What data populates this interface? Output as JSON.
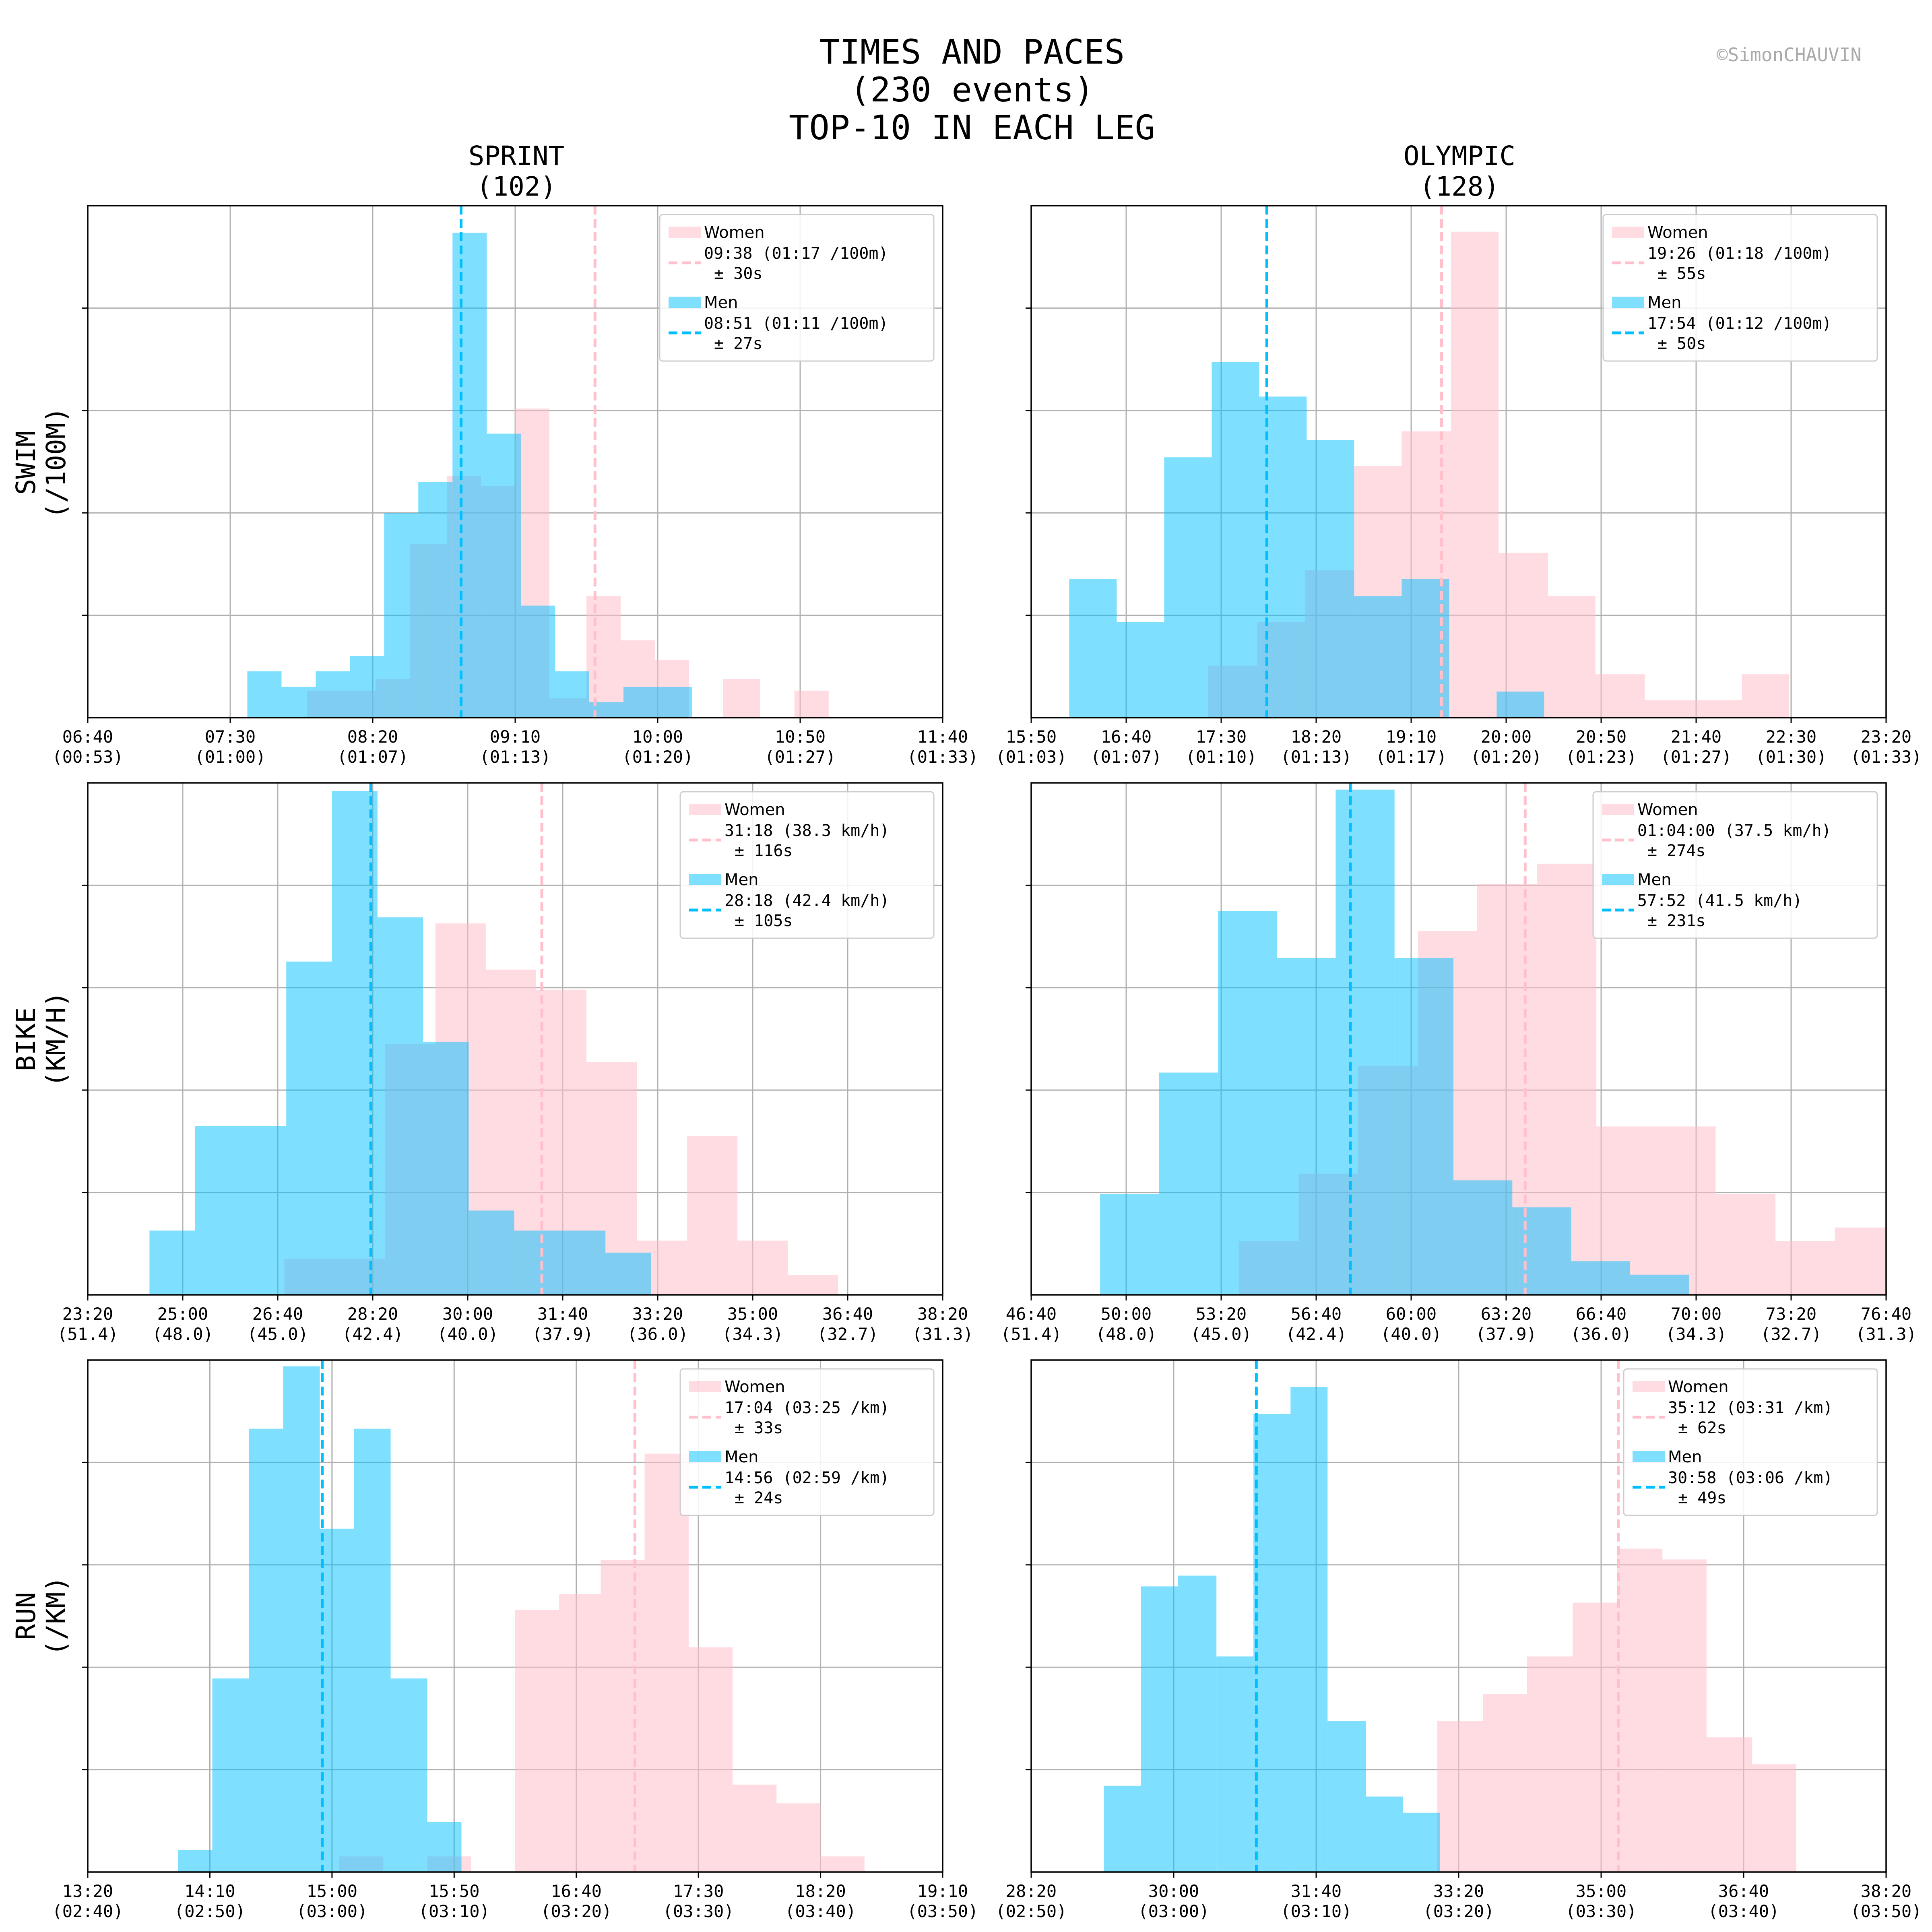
{
  "title_lines": [
    "TIMES AND PACES",
    "(230 events)",
    "TOP-10 IN EACH LEG"
  ],
  "watermark": "©SimonCHAUVIN",
  "columns": [
    {
      "name": "SPRINT",
      "count": "(102)"
    },
    {
      "name": "OLYMPIC",
      "count": "(128)"
    }
  ],
  "rows": [
    {
      "name": "SWIM",
      "unit": "(/100M)"
    },
    {
      "name": "BIKE",
      "unit": "(KM/H)"
    },
    {
      "name": "RUN",
      "unit": "(/KM)"
    }
  ],
  "colors": {
    "women": "#ffc0cb",
    "men": "#00bfff",
    "grid": "#b0b0b0"
  },
  "chart_data": [
    {
      "type": "histogram",
      "id": "swim-sprint",
      "row": 0,
      "col": 0,
      "x_unit": "seconds",
      "xlim": [
        400,
        700
      ],
      "ylim": [
        0,
        26.5
      ],
      "xticks": [
        400,
        450,
        500,
        550,
        600,
        650,
        700
      ],
      "xtick_labels": [
        "06:40\n(00:53)",
        "07:30\n(01:00)",
        "08:20\n(01:07)",
        "09:10\n(01:13)",
        "10:00\n(01:20)",
        "10:50\n(01:27)",
        "11:40\n(01:33)"
      ],
      "grid": true,
      "legend": {
        "position": "top-right",
        "women_label": "Women",
        "women_mean": "09:38 (01:17 /100m)",
        "women_sd": "± 30s",
        "men_label": "Men",
        "men_mean": "08:51 (01:11 /100m)",
        "men_sd": "± 27s"
      },
      "women": {
        "bins": [
          477,
          489,
          501,
          513,
          526,
          538,
          550,
          562,
          575,
          587,
          599,
          611,
          623,
          636,
          648,
          660,
          672
        ],
        "counts": [
          1.4,
          1.4,
          2,
          9,
          12.5,
          12,
          16,
          1,
          6.3,
          4,
          3,
          0,
          2,
          0,
          1.4,
          0
        ],
        "mean": 578
      },
      "men": {
        "bins": [
          456,
          468,
          480,
          492,
          504,
          516,
          528,
          540,
          552,
          564,
          576,
          588,
          600,
          612,
          624
        ],
        "counts": [
          2.4,
          1.6,
          2.4,
          3.2,
          10.6,
          12.2,
          25.1,
          14.7,
          5.8,
          2.4,
          0.8,
          1.6,
          1.6,
          0
        ],
        "mean": 531
      }
    },
    {
      "type": "histogram",
      "id": "swim-olympic",
      "row": 0,
      "col": 1,
      "x_unit": "seconds",
      "xlim": [
        950,
        1400
      ],
      "ylim": [
        0,
        5.9
      ],
      "xticks": [
        950,
        1000,
        1050,
        1100,
        1150,
        1200,
        1250,
        1300,
        1350,
        1400
      ],
      "xtick_labels": [
        "15:50\n(01:03)",
        "16:40\n(01:07)",
        "17:30\n(01:10)",
        "18:20\n(01:13)",
        "19:10\n(01:17)",
        "20:00\n(01:20)",
        "20:50\n(01:23)",
        "21:40\n(01:27)",
        "22:30\n(01:30)",
        "23:20\n(01:33)"
      ],
      "grid": true,
      "legend": {
        "position": "top-right",
        "women_label": "Women",
        "women_mean": "19:26 (01:18 /100m)",
        "women_sd": "± 55s",
        "men_label": "Men",
        "men_mean": "17:54 (01:12 /100m)",
        "men_sd": "± 50s"
      },
      "women": {
        "bins": [
          1043,
          1069,
          1094,
          1120,
          1145,
          1171,
          1196,
          1222,
          1247,
          1273,
          1298,
          1324,
          1349,
          1375
        ],
        "counts": [
          0.6,
          1.1,
          1.7,
          2.9,
          3.3,
          5.6,
          1.9,
          1.4,
          0.5,
          0.2,
          0.2,
          0.5,
          0
        ],
        "mean": 1166
      },
      "men": {
        "bins": [
          970,
          995,
          1020,
          1045,
          1070,
          1095,
          1120,
          1145,
          1170,
          1195,
          1220
        ],
        "counts": [
          1.6,
          1.1,
          3.0,
          4.1,
          3.7,
          3.2,
          1.4,
          1.6,
          0,
          0.3
        ],
        "mean": 1074
      }
    },
    {
      "type": "histogram",
      "id": "bike-sprint",
      "row": 1,
      "col": 0,
      "x_unit": "seconds",
      "xlim": [
        1400,
        2300
      ],
      "ylim": [
        0,
        25.5
      ],
      "xticks": [
        1400,
        1500,
        1600,
        1700,
        1800,
        1900,
        2000,
        2100,
        2200,
        2300
      ],
      "xtick_labels": [
        "23:20\n(51.4)",
        "25:00\n(48.0)",
        "26:40\n(45.0)",
        "28:20\n(42.4)",
        "30:00\n(40.0)",
        "31:40\n(37.9)",
        "33:20\n(36.0)",
        "35:00\n(34.3)",
        "36:40\n(32.7)",
        "38:20\n(31.3)"
      ],
      "grid": true,
      "legend": {
        "position": "top-right",
        "women_label": "Women",
        "women_mean": "31:18 (38.3 km/h)",
        "women_sd": "± 116s",
        "men_label": "Men",
        "men_mean": "28:18 (42.4 km/h)",
        "men_sd": "± 105s"
      },
      "women": {
        "bins": [
          1607,
          1660,
          1713,
          1766,
          1819,
          1872,
          1925,
          1978,
          2031,
          2084,
          2137,
          2190,
          2243
        ],
        "counts": [
          1.8,
          1.8,
          12.5,
          18.5,
          16.2,
          15.2,
          11.6,
          2.7,
          7.9,
          2.7,
          1.0,
          0
        ],
        "mean": 1878
      },
      "men": {
        "bins": [
          1465,
          1513,
          1561,
          1609,
          1657,
          1705,
          1753,
          1801,
          1849,
          1897,
          1945,
          1993,
          2041
        ],
        "counts": [
          3.2,
          8.4,
          8.4,
          16.6,
          25.1,
          18.8,
          12.6,
          4.2,
          3.2,
          3.2,
          2.1,
          0
        ],
        "mean": 1698
      }
    },
    {
      "type": "histogram",
      "id": "bike-olympic",
      "row": 1,
      "col": 1,
      "x_unit": "seconds",
      "xlim": [
        2800,
        4600
      ],
      "ylim": [
        0,
        7.6
      ],
      "xticks": [
        2800,
        3000,
        3200,
        3400,
        3600,
        3800,
        4000,
        4200,
        4400,
        4600
      ],
      "xtick_labels": [
        "46:40\n(51.4)",
        "50:00\n(48.0)",
        "53:20\n(45.0)",
        "56:40\n(42.4)",
        "60:00\n(40.0)",
        "63:20\n(37.9)",
        "66:40\n(36.0)",
        "70:00\n(34.3)",
        "73:20\n(32.7)",
        "76:40\n(31.3)"
      ],
      "grid": true,
      "legend": {
        "position": "top-right",
        "women_label": "Women",
        "women_mean": "01:04:00 (37.5 km/h)",
        "women_sd": "± 274s",
        "men_label": "Men",
        "men_mean": "57:52 (41.5 km/h)",
        "men_sd": "± 231s"
      },
      "women": {
        "bins": [
          3237,
          3363,
          3488,
          3614,
          3739,
          3865,
          3990,
          4116,
          4241,
          4367,
          4492,
          4600
        ],
        "counts": [
          0.8,
          1.8,
          3.4,
          5.4,
          6.1,
          6.4,
          2.5,
          2.5,
          1.5,
          0.8,
          1.0
        ],
        "mean": 3840
      },
      "men": {
        "bins": [
          2945,
          3069,
          3193,
          3317,
          3441,
          3565,
          3689,
          3813,
          3937,
          4061,
          4185
        ],
        "counts": [
          1.5,
          3.3,
          5.7,
          5.0,
          7.5,
          5.0,
          1.7,
          1.3,
          0.5,
          0.3
        ],
        "mean": 3472
      }
    },
    {
      "type": "histogram",
      "id": "run-sprint",
      "row": 2,
      "col": 0,
      "x_unit": "seconds",
      "xlim": [
        800,
        1150
      ],
      "ylim": [
        0,
        8.2
      ],
      "xticks": [
        800,
        850,
        900,
        950,
        1000,
        1050,
        1100,
        1150
      ],
      "xtick_labels": [
        "13:20\n(02:40)",
        "14:10\n(02:50)",
        "15:00\n(03:00)",
        "15:50\n(03:10)",
        "16:40\n(03:20)",
        "17:30\n(03:30)",
        "18:20\n(03:40)",
        "19:10\n(03:50)"
      ],
      "grid": true,
      "legend": {
        "position": "top-right",
        "women_label": "Women",
        "women_mean": "17:04 (03:25 /km)",
        "women_sd": "± 33s",
        "men_label": "Men",
        "men_mean": "14:56 (02:59 /km)",
        "men_sd": "± 24s"
      },
      "women": {
        "bins": [
          903,
          921,
          939,
          957,
          975,
          993,
          1010,
          1028,
          1046,
          1064,
          1082,
          1100,
          1118
        ],
        "counts": [
          0.25,
          0,
          0.25,
          0,
          4.2,
          4.45,
          5.0,
          6.7,
          3.6,
          1.4,
          1.1,
          0.25
        ],
        "mean": 1024
      },
      "men": {
        "bins": [
          837,
          851,
          866,
          880,
          895,
          909,
          924,
          939,
          953,
          968,
          982
        ],
        "counts": [
          0.35,
          3.1,
          7.1,
          8.1,
          5.5,
          7.1,
          3.1,
          0.8,
          0,
          0
        ],
        "mean": 896
      }
    },
    {
      "type": "histogram",
      "id": "run-olympic",
      "row": 2,
      "col": 1,
      "x_unit": "seconds",
      "xlim": [
        1700,
        2300
      ],
      "ylim": [
        0,
        9.5
      ],
      "xticks": [
        1700,
        1800,
        1900,
        2000,
        2100,
        2200,
        2300
      ],
      "xtick_labels": [
        "28:20\n(02:50)",
        "30:00\n(03:00)",
        "31:40\n(03:10)",
        "33:20\n(03:20)",
        "35:00\n(03:30)",
        "36:40\n(03:40)",
        "38:20\n(03:50)"
      ],
      "grid": true,
      "legend": {
        "position": "top-right",
        "women_label": "Women",
        "women_mean": "35:12 (03:31 /km)",
        "women_sd": "± 62s",
        "men_label": "Men",
        "men_mean": "30:58 (03:06 /km)",
        "men_sd": "± 49s"
      },
      "women": {
        "bins": [
          1985,
          2017,
          2048,
          2080,
          2111,
          2143,
          2174,
          2206,
          2237
        ],
        "counts": [
          2.8,
          3.3,
          4.0,
          5.0,
          6.0,
          5.8,
          2.5,
          2.0
        ],
        "mean": 2112
      },
      "men": {
        "bins": [
          1751,
          1777,
          1803,
          1830,
          1856,
          1882,
          1908,
          1935,
          1961,
          1987
        ],
        "counts": [
          1.6,
          5.3,
          5.5,
          4.0,
          8.5,
          9.0,
          2.8,
          1.4,
          1.1
        ],
        "mean": 1858
      }
    }
  ]
}
